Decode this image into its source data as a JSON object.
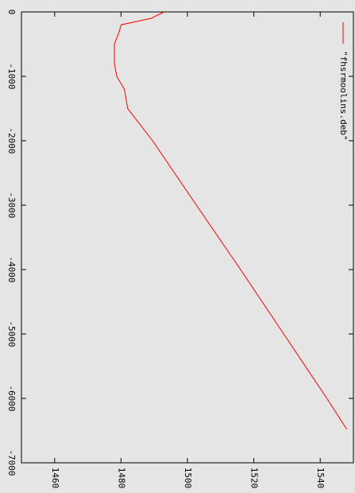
{
  "chart_data": {
    "type": "line",
    "x": [
      0,
      -100,
      -200,
      -300,
      -500,
      -800,
      -1000,
      -1200,
      -1500,
      -2000,
      -3000,
      -4000,
      -5000,
      -6000,
      -6480
    ],
    "series": [
      {
        "name": "\"fhsrmoolins.deb\"",
        "color": "#ff0000",
        "values": [
          1493,
          1489,
          1480,
          1479.5,
          1478,
          1478,
          1478.7,
          1481,
          1482,
          1489.5,
          1502.7,
          1516,
          1529,
          1542,
          1548
        ]
      }
    ],
    "xlim": [
      -7000,
      0
    ],
    "xticks": [
      0,
      -1000,
      -2000,
      -3000,
      -4000,
      -5000,
      -6000,
      -7000
    ],
    "ylim": [
      1450,
      1550
    ],
    "yticks": [
      1460,
      1480,
      1500,
      1520,
      1540
    ],
    "legend": "top-right"
  }
}
